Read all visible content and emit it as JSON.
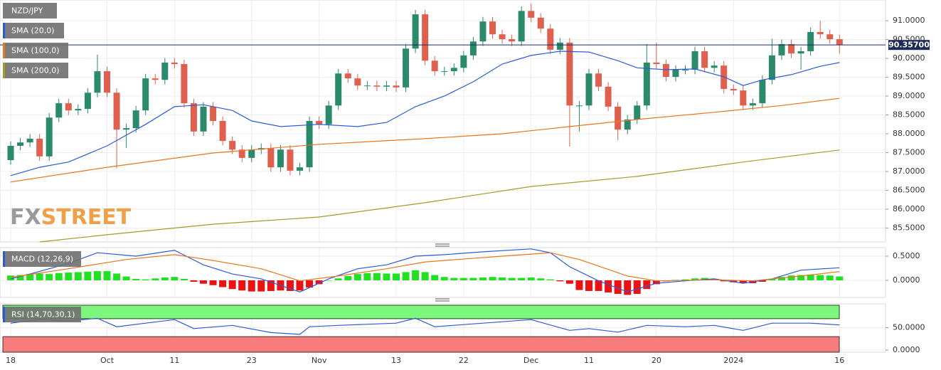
{
  "chart_data": [
    {
      "type": "candlestick",
      "symbol": "NZD/JPY",
      "watermark": [
        "FX",
        "STREET"
      ],
      "colors": {
        "up": "#2b8a6b",
        "down": "#e0604f"
      },
      "categories": [
        "18",
        null,
        null,
        null,
        null,
        null,
        null,
        null,
        null,
        null,
        "Oct",
        null,
        null,
        null,
        null,
        null,
        null,
        "11",
        null,
        null,
        null,
        null,
        null,
        null,
        null,
        "23",
        null,
        null,
        null,
        null,
        null,
        null,
        "Nov",
        null,
        null,
        null,
        null,
        null,
        null,
        null,
        "13",
        null,
        null,
        null,
        null,
        null,
        null,
        "22",
        null,
        null,
        null,
        null,
        null,
        null,
        "Dec",
        null,
        null,
        null,
        null,
        null,
        "11",
        null,
        null,
        null,
        null,
        null,
        null,
        "20",
        null,
        null,
        null,
        null,
        null,
        null,
        null,
        "2024",
        null,
        null,
        null,
        null,
        null,
        null,
        null,
        null,
        null,
        null,
        "16"
      ],
      "open": [
        87.3,
        87.68,
        87.77,
        87.87,
        87.4,
        88.43,
        88.81,
        88.62,
        88.66,
        89.09,
        89.66,
        89.09,
        88.11,
        88.15,
        88.62,
        89.47,
        89.43,
        89.89,
        89.85,
        88.81,
        88.06,
        88.72,
        88.34,
        87.81,
        87.58,
        87.36,
        87.58,
        87.62,
        87.11,
        87.58,
        87.02,
        87.11,
        88.34,
        88.25,
        88.75,
        89.6,
        89.47,
        89.28,
        89.28,
        89.25,
        89.28,
        89.23,
        90.26,
        91.17,
        89.94,
        89.66,
        89.66,
        89.75,
        90.08,
        90.45,
        90.98,
        90.64,
        90.51,
        90.45,
        91.26,
        91.08,
        90.79,
        90.23,
        90.42,
        88.75,
        88.75,
        89.6,
        89.25,
        88.72,
        88.11,
        88.38,
        88.75,
        89.89,
        89.85,
        89.51,
        89.7,
        89.7,
        90.19,
        89.75,
        89.81,
        89.19,
        89.15,
        88.75,
        88.81,
        89.43,
        90.08,
        90.38,
        90.13,
        90.19,
        90.7,
        90.64,
        90.51
      ],
      "high": [
        87.8,
        87.89,
        87.99,
        87.99,
        88.55,
        88.93,
        88.93,
        88.78,
        89.21,
        90.1,
        89.78,
        89.21,
        88.27,
        88.74,
        89.59,
        89.59,
        90.01,
        90.01,
        89.97,
        88.93,
        88.84,
        88.84,
        88.46,
        87.93,
        87.7,
        87.7,
        87.74,
        87.74,
        87.7,
        87.7,
        87.23,
        88.46,
        88.46,
        88.87,
        89.72,
        89.72,
        89.59,
        89.4,
        89.4,
        89.4,
        89.4,
        90.38,
        91.29,
        91.29,
        90.06,
        89.78,
        89.87,
        90.2,
        90.57,
        91.1,
        91.1,
        90.76,
        90.63,
        91.38,
        91.45,
        91.2,
        90.91,
        90.54,
        90.54,
        88.87,
        89.72,
        89.72,
        89.37,
        88.84,
        88.5,
        88.87,
        90.38,
        90.42,
        89.97,
        89.82,
        89.82,
        90.31,
        90.31,
        89.93,
        89.93,
        89.31,
        89.27,
        88.93,
        89.55,
        90.52,
        90.5,
        90.5,
        90.31,
        90.82,
        91.0,
        90.76,
        90.63
      ],
      "low": [
        87.18,
        87.56,
        87.65,
        87.28,
        87.28,
        88.31,
        88.5,
        88.5,
        88.54,
        88.97,
        88.97,
        87.08,
        87.62,
        88.03,
        88.5,
        89.31,
        89.31,
        89.73,
        88.69,
        87.94,
        87.94,
        88.22,
        87.69,
        87.46,
        87.24,
        87.24,
        87.46,
        86.99,
        86.99,
        86.9,
        86.9,
        86.99,
        88.13,
        88.13,
        88.63,
        89.35,
        89.16,
        89.16,
        89.13,
        89.13,
        89.11,
        89.11,
        90.14,
        89.82,
        89.54,
        89.54,
        89.54,
        89.63,
        89.96,
        90.33,
        90.52,
        90.39,
        90.33,
        90.33,
        90.96,
        90.67,
        90.11,
        90.11,
        87.66,
        88.06,
        88.63,
        89.13,
        88.6,
        87.83,
        87.99,
        88.26,
        88.63,
        89.73,
        89.39,
        89.39,
        89.58,
        89.58,
        89.63,
        89.63,
        89.07,
        89.03,
        88.63,
        88.63,
        88.69,
        89.31,
        89.96,
        90.01,
        89.7,
        90.07,
        90.52,
        90.39,
        90.13
      ],
      "close": [
        87.68,
        87.77,
        87.87,
        87.4,
        88.43,
        88.81,
        88.62,
        88.66,
        89.09,
        89.66,
        89.09,
        88.11,
        88.15,
        88.62,
        89.47,
        89.43,
        89.89,
        89.85,
        88.81,
        88.06,
        88.72,
        88.34,
        87.81,
        87.58,
        87.36,
        87.58,
        87.62,
        87.11,
        87.58,
        87.02,
        87.11,
        88.34,
        88.25,
        88.75,
        89.6,
        89.47,
        89.28,
        89.28,
        89.25,
        89.28,
        89.23,
        90.26,
        91.17,
        89.94,
        89.66,
        89.66,
        89.75,
        90.08,
        90.45,
        90.98,
        90.64,
        90.51,
        90.45,
        91.26,
        91.08,
        90.79,
        90.23,
        90.42,
        88.75,
        88.75,
        89.6,
        89.25,
        88.72,
        88.11,
        88.38,
        88.75,
        89.89,
        89.85,
        89.51,
        89.7,
        89.7,
        90.19,
        89.75,
        89.81,
        89.19,
        89.15,
        88.75,
        88.81,
        89.43,
        90.08,
        90.38,
        90.13,
        90.19,
        90.7,
        90.64,
        90.51,
        90.357
      ],
      "series": [
        {
          "name": "SMA (20,0)",
          "color": "#2a5bd7",
          "x": [
            0,
            3,
            6,
            10,
            14,
            17,
            20,
            23,
            25,
            28,
            32,
            36,
            39,
            42,
            45,
            48,
            51,
            54,
            57,
            60,
            63,
            65,
            68,
            71,
            74,
            76,
            78,
            81,
            84,
            86
          ],
          "values": [
            86.89,
            87.11,
            87.25,
            87.68,
            88.25,
            88.72,
            88.77,
            88.62,
            88.34,
            88.19,
            88.25,
            88.19,
            88.3,
            88.72,
            89.0,
            89.38,
            89.85,
            90.08,
            90.19,
            90.17,
            89.94,
            89.75,
            89.7,
            89.72,
            89.51,
            89.28,
            89.43,
            89.57,
            89.79,
            89.89
          ]
        },
        {
          "name": "SMA (100,0)",
          "color": "#e8761e",
          "x": [
            0,
            10,
            21,
            32,
            43,
            51,
            58,
            65,
            73,
            80,
            86
          ],
          "values": [
            86.72,
            87.11,
            87.49,
            87.72,
            87.87,
            88.0,
            88.19,
            88.38,
            88.57,
            88.75,
            88.94
          ]
        },
        {
          "name": "SMA (200,0)",
          "color": "#a39a2a",
          "x": [
            3,
            10,
            21,
            32,
            43,
            54,
            65,
            76,
            86
          ],
          "values": [
            85.13,
            85.32,
            85.6,
            85.79,
            86.17,
            86.6,
            86.87,
            87.25,
            87.57
          ]
        }
      ],
      "last_price": {
        "value": 90.357,
        "label": "90.35700"
      },
      "ylim": [
        85.13,
        91.55
      ],
      "yticks": [
        {
          "value": 91,
          "label": "91.0000"
        },
        {
          "value": 90.5,
          "label": "90.5000"
        },
        {
          "value": 90,
          "label": "90.0000"
        },
        {
          "value": 89.5,
          "label": "89.5000"
        },
        {
          "value": 89,
          "label": "89.0000"
        },
        {
          "value": 88.5,
          "label": "88.5000"
        },
        {
          "value": 88,
          "label": "88.0000"
        },
        {
          "value": 87.5,
          "label": "87.5000"
        },
        {
          "value": 87,
          "label": "87.0000"
        },
        {
          "value": 86.5,
          "label": "86.5000"
        },
        {
          "value": 86,
          "label": "86.0000"
        },
        {
          "value": 85.5,
          "label": "85.5000"
        }
      ],
      "grid": true
    },
    {
      "type": "macd",
      "title": "MACD (12,26,9)",
      "histogram": [
        0.1,
        0.11,
        0.13,
        0.14,
        0.13,
        0.15,
        0.16,
        0.17,
        0.18,
        0.19,
        0.19,
        0.14,
        0.08,
        0.03,
        0.02,
        0.04,
        0.06,
        0.07,
        0.03,
        -0.03,
        -0.07,
        -0.1,
        -0.14,
        -0.18,
        -0.21,
        -0.23,
        -0.23,
        -0.22,
        -0.21,
        -0.22,
        -0.21,
        -0.15,
        -0.08,
        0.0,
        0.04,
        0.09,
        0.13,
        0.15,
        0.15,
        0.14,
        0.14,
        0.17,
        0.21,
        0.17,
        0.11,
        0.07,
        0.05,
        0.05,
        0.05,
        0.06,
        0.07,
        0.06,
        0.05,
        0.05,
        0.06,
        0.04,
        0.02,
        -0.02,
        -0.07,
        -0.2,
        -0.22,
        -0.22,
        -0.25,
        -0.28,
        -0.3,
        -0.28,
        -0.18,
        -0.08,
        -0.02,
        0.01,
        0.02,
        0.04,
        0.05,
        0.03,
        -0.02,
        -0.04,
        -0.06,
        -0.06,
        -0.03,
        0.03,
        0.07,
        0.1,
        0.11,
        0.12,
        0.11,
        0.1,
        0.08
      ],
      "histogram_colors": {
        "up": "#22e022",
        "down": "#ee1111"
      },
      "series": [
        {
          "color": "#2a5bd7",
          "x": [
            0,
            2,
            6,
            9,
            13,
            17,
            20,
            23,
            26,
            30,
            33,
            36,
            39,
            42,
            45,
            49,
            54,
            56,
            58,
            61,
            64,
            67,
            70,
            73,
            76,
            79,
            82,
            86
          ],
          "values": [
            0.03,
            0.13,
            0.35,
            0.57,
            0.5,
            0.62,
            0.32,
            0.13,
            0.03,
            -0.24,
            0.03,
            0.24,
            0.32,
            0.5,
            0.53,
            0.59,
            0.65,
            0.57,
            0.28,
            -0.01,
            -0.24,
            -0.06,
            -0.01,
            0.03,
            -0.06,
            0.03,
            0.21,
            0.26
          ]
        },
        {
          "color": "#e8761e",
          "x": [
            0,
            6,
            12,
            17,
            21,
            26,
            30,
            34,
            39,
            43,
            51,
            56,
            59,
            64,
            67,
            73,
            77,
            82,
            86
          ],
          "values": [
            0.06,
            0.24,
            0.43,
            0.53,
            0.41,
            0.24,
            -0.01,
            0.09,
            0.24,
            0.38,
            0.5,
            0.57,
            0.43,
            0.09,
            -0.01,
            0.01,
            -0.01,
            0.09,
            0.18
          ]
        }
      ],
      "ylim": [
        -0.353,
        0.676
      ],
      "yticks": [
        {
          "value": 0.5,
          "label": "0.5000"
        },
        {
          "value": 0,
          "label": "0.0000"
        }
      ],
      "grid": true
    },
    {
      "type": "line",
      "title": "RSI (14,70,30,1)",
      "overbought": 70,
      "oversold": 30,
      "band_colors": [
        "#7cf77c",
        "#f77c7c"
      ],
      "color": "#2a5bd7",
      "x": [
        0,
        3,
        6,
        9,
        11,
        14,
        17,
        19,
        23,
        27,
        30,
        31,
        34,
        40,
        42,
        44,
        49,
        54,
        58,
        60,
        63,
        66,
        70,
        73,
        76,
        79,
        83,
        86
      ],
      "values": [
        60,
        68,
        65,
        71,
        52,
        60,
        68,
        48,
        55,
        39,
        35,
        52,
        55,
        60,
        71,
        52,
        60,
        68,
        44,
        48,
        40,
        55,
        52,
        55,
        44,
        60,
        60,
        56
      ],
      "ylim": [
        -4.8,
        103.2
      ],
      "yticks": [
        {
          "value": 50,
          "label": "50.0000"
        },
        {
          "value": 0,
          "label": "0.0000"
        }
      ],
      "grid": true
    }
  ]
}
